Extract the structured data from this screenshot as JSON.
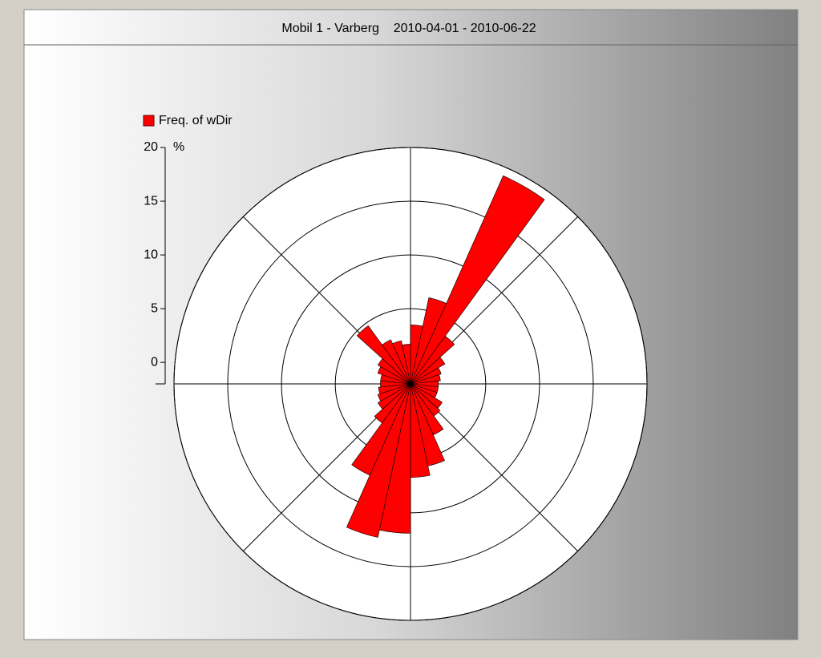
{
  "chart_data": {
    "type": "polar-bar",
    "title": "Mobil 1 - Varberg    2010-04-01 - 2010-06-22",
    "legend": "Freq. of wDir",
    "y_unit": "%",
    "color": "#ff0000",
    "ylim": [
      -2,
      20
    ],
    "yticks": [
      0,
      5,
      10,
      15,
      20
    ],
    "rings": [
      5,
      10,
      15,
      20
    ],
    "values": [
      3.5,
      6.2,
      19.2,
      3.5,
      1.7,
      1.0,
      0.8,
      0.6,
      0.6,
      0.6,
      1.4,
      1.7,
      3.2,
      5.8,
      6.7,
      11.9,
      12.6,
      7.3,
      2.5,
      1.5,
      1.2,
      1.0,
      0.8,
      0.8,
      1.2,
      1.5,
      4.7,
      2.5,
      2.1,
      1.7
    ]
  }
}
